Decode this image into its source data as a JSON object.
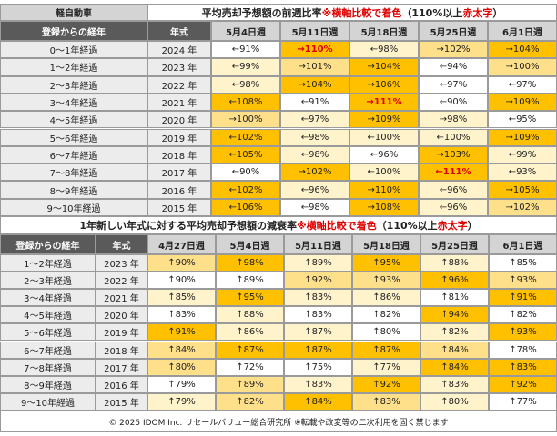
{
  "top": {
    "category": "軽自動車",
    "title": [
      "平均売却予想額の前週比率 ",
      "※横軸比較で着色",
      "（110%以上 ",
      "赤太字",
      "）"
    ],
    "columns": [
      "登録からの経年",
      "年式",
      "5月4日週",
      "5月11日週",
      "5月18日週",
      "5月25日週",
      "6月1日週"
    ],
    "rows": [
      {
        "age": "0〜1年経過",
        "year": "2024 年",
        "cells": [
          {
            "text": "←91%",
            "bg": "#ffffff"
          },
          {
            "text": "→110%",
            "bg": "#ffc000",
            "red": true
          },
          {
            "text": "←98%",
            "bg": "#fff3cc"
          },
          {
            "text": "→102%",
            "bg": "#ffe08a"
          },
          {
            "text": "→104%",
            "bg": "#ffc000"
          }
        ]
      },
      {
        "age": "1〜2年経過",
        "year": "2023 年",
        "cells": [
          {
            "text": "←99%",
            "bg": "#fff3cc"
          },
          {
            "text": "→101%",
            "bg": "#ffe08a"
          },
          {
            "text": "→104%",
            "bg": "#ffc000"
          },
          {
            "text": "←94%",
            "bg": "#ffffff"
          },
          {
            "text": "→100%",
            "bg": "#ffe08a"
          }
        ]
      },
      {
        "age": "2〜3年経過",
        "year": "2022 年",
        "cells": [
          {
            "text": "←98%",
            "bg": "#fff3cc"
          },
          {
            "text": "→104%",
            "bg": "#ffc000"
          },
          {
            "text": "→106%",
            "bg": "#ffc000"
          },
          {
            "text": "←97%",
            "bg": "#ffffff"
          },
          {
            "text": "←97%",
            "bg": "#ffffff"
          }
        ]
      },
      {
        "age": "3〜4年経過",
        "year": "2021 年",
        "cells": [
          {
            "text": "←108%",
            "bg": "#ffc000"
          },
          {
            "text": "←91%",
            "bg": "#ffffff"
          },
          {
            "text": "→111%",
            "bg": "#ffc000",
            "red": true
          },
          {
            "text": "←90%",
            "bg": "#ffffff"
          },
          {
            "text": "→109%",
            "bg": "#ffc000"
          }
        ]
      },
      {
        "age": "4〜5年経過",
        "year": "2020 年",
        "cells": [
          {
            "text": "→100%",
            "bg": "#ffe08a"
          },
          {
            "text": "←97%",
            "bg": "#fff3cc"
          },
          {
            "text": "→109%",
            "bg": "#ffc000"
          },
          {
            "text": "→98%",
            "bg": "#fff3cc"
          },
          {
            "text": "←95%",
            "bg": "#ffffff"
          }
        ]
      },
      {
        "age": "5〜6年経過",
        "year": "2019 年",
        "cells": [
          {
            "text": "←102%",
            "bg": "#ffc000"
          },
          {
            "text": "←98%",
            "bg": "#fff3cc"
          },
          {
            "text": "←100%",
            "bg": "#fff3cc"
          },
          {
            "text": "←100%",
            "bg": "#fff3cc"
          },
          {
            "text": "→109%",
            "bg": "#ffc000"
          }
        ]
      },
      {
        "age": "6〜7年経過",
        "year": "2018 年",
        "cells": [
          {
            "text": "←105%",
            "bg": "#ffc000"
          },
          {
            "text": "←98%",
            "bg": "#fff3cc"
          },
          {
            "text": "←96%",
            "bg": "#ffffff"
          },
          {
            "text": "→103%",
            "bg": "#ffc000"
          },
          {
            "text": "←99%",
            "bg": "#fff3cc"
          }
        ]
      },
      {
        "age": "7〜8年経過",
        "year": "2017 年",
        "cells": [
          {
            "text": "←90%",
            "bg": "#ffffff"
          },
          {
            "text": "→102%",
            "bg": "#ffc000"
          },
          {
            "text": "←100%",
            "bg": "#fff3cc"
          },
          {
            "text": "←111%",
            "bg": "#ffc000",
            "red": true
          },
          {
            "text": "←93%",
            "bg": "#fff3cc"
          }
        ]
      },
      {
        "age": "8〜9年経過",
        "year": "2016 年",
        "cells": [
          {
            "text": "←102%",
            "bg": "#ffc000"
          },
          {
            "text": "←96%",
            "bg": "#fff3cc"
          },
          {
            "text": "→110%",
            "bg": "#ffc000"
          },
          {
            "text": "←96%",
            "bg": "#fff3cc"
          },
          {
            "text": "→105%",
            "bg": "#ffc000"
          }
        ]
      },
      {
        "age": "9〜10年経過",
        "year": "2015 年",
        "cells": [
          {
            "text": "←106%",
            "bg": "#ffc000"
          },
          {
            "text": "←98%",
            "bg": "#ffffff"
          },
          {
            "text": "→108%",
            "bg": "#ffc000"
          },
          {
            "text": "←96%",
            "bg": "#fff3cc"
          },
          {
            "text": "→102%",
            "bg": "#ffe08a"
          }
        ]
      }
    ]
  },
  "bottom": {
    "title": [
      "1年新しい年式に対する平均売却予想額の減衰率 ",
      "※横軸比較で着色",
      "（110%以上 ",
      "赤太字",
      "）"
    ],
    "columns": [
      "登録からの経年",
      "年式",
      "4月27日週",
      "5月4日週",
      "5月11日週",
      "5月18日週",
      "5月25日週",
      "6月1日週"
    ],
    "rows": [
      {
        "age": "1〜2年経過",
        "year": "2023 年",
        "cells": [
          {
            "text": "↑90%",
            "bg": "#ffe08a"
          },
          {
            "text": "↑98%",
            "bg": "#ffc000"
          },
          {
            "text": "↑89%",
            "bg": "#fff3cc"
          },
          {
            "text": "↑95%",
            "bg": "#ffc000"
          },
          {
            "text": "↑88%",
            "bg": "#fff3cc"
          },
          {
            "text": "↑85%",
            "bg": "#ffffff"
          }
        ]
      },
      {
        "age": "2〜3年経過",
        "year": "2022 年",
        "cells": [
          {
            "text": "↑90%",
            "bg": "#ffffff"
          },
          {
            "text": "↑89%",
            "bg": "#ffffff"
          },
          {
            "text": "↑92%",
            "bg": "#ffe08a"
          },
          {
            "text": "↑93%",
            "bg": "#ffe08a"
          },
          {
            "text": "↑96%",
            "bg": "#ffc000"
          },
          {
            "text": "↑93%",
            "bg": "#ffe08a"
          }
        ]
      },
      {
        "age": "3〜4年経過",
        "year": "2021 年",
        "cells": [
          {
            "text": "↑85%",
            "bg": "#fff3cc"
          },
          {
            "text": "↑95%",
            "bg": "#ffc000"
          },
          {
            "text": "↑83%",
            "bg": "#fff3cc"
          },
          {
            "text": "↑86%",
            "bg": "#fff3cc"
          },
          {
            "text": "↑81%",
            "bg": "#ffffff"
          },
          {
            "text": "↑91%",
            "bg": "#ffc000"
          }
        ]
      },
      {
        "age": "4〜5年経過",
        "year": "2020 年",
        "cells": [
          {
            "text": "↑83%",
            "bg": "#ffffff"
          },
          {
            "text": "↑88%",
            "bg": "#fff3cc"
          },
          {
            "text": "↑83%",
            "bg": "#ffffff"
          },
          {
            "text": "↑82%",
            "bg": "#ffffff"
          },
          {
            "text": "↑94%",
            "bg": "#ffc000"
          },
          {
            "text": "↑82%",
            "bg": "#ffffff"
          }
        ]
      },
      {
        "age": "5〜6年経過",
        "year": "2019 年",
        "cells": [
          {
            "text": "↑91%",
            "bg": "#ffc000"
          },
          {
            "text": "↑86%",
            "bg": "#fff3cc"
          },
          {
            "text": "↑87%",
            "bg": "#fff3cc"
          },
          {
            "text": "↑80%",
            "bg": "#ffffff"
          },
          {
            "text": "↑82%",
            "bg": "#fff3cc"
          },
          {
            "text": "↑93%",
            "bg": "#ffc000"
          }
        ]
      },
      {
        "age": "6〜7年経過",
        "year": "2018 年",
        "cells": [
          {
            "text": "↑84%",
            "bg": "#ffe08a"
          },
          {
            "text": "↑87%",
            "bg": "#ffc000"
          },
          {
            "text": "↑87%",
            "bg": "#ffc000"
          },
          {
            "text": "↑87%",
            "bg": "#ffc000"
          },
          {
            "text": "↑84%",
            "bg": "#ffe08a"
          },
          {
            "text": "↑78%",
            "bg": "#ffffff"
          }
        ]
      },
      {
        "age": "7〜8年経過",
        "year": "2017 年",
        "cells": [
          {
            "text": "↑80%",
            "bg": "#ffe08a"
          },
          {
            "text": "↑72%",
            "bg": "#ffffff"
          },
          {
            "text": "↑75%",
            "bg": "#ffffff"
          },
          {
            "text": "↑77%",
            "bg": "#fff3cc"
          },
          {
            "text": "↑84%",
            "bg": "#ffc000"
          },
          {
            "text": "↑83%",
            "bg": "#ffc000"
          }
        ]
      },
      {
        "age": "8〜9年経過",
        "year": "2016 年",
        "cells": [
          {
            "text": "↑79%",
            "bg": "#ffffff"
          },
          {
            "text": "↑89%",
            "bg": "#ffe08a"
          },
          {
            "text": "↑83%",
            "bg": "#fff3cc"
          },
          {
            "text": "↑92%",
            "bg": "#ffc000"
          },
          {
            "text": "↑83%",
            "bg": "#fff3cc"
          },
          {
            "text": "↑92%",
            "bg": "#ffc000"
          }
        ]
      },
      {
        "age": "9〜10年経過",
        "year": "2015 年",
        "cells": [
          {
            "text": "↑79%",
            "bg": "#fff3cc"
          },
          {
            "text": "↑82%",
            "bg": "#ffe08a"
          },
          {
            "text": "↑84%",
            "bg": "#ffc000"
          },
          {
            "text": "↑83%",
            "bg": "#ffe08a"
          },
          {
            "text": "↑80%",
            "bg": "#fff3cc"
          },
          {
            "text": "↑77%",
            "bg": "#ffffff"
          }
        ]
      }
    ]
  },
  "footer": "© 2025 IDOM Inc. リセールバリュー総合研究所 ※転載や改変等の二次利用を固く禁じます"
}
